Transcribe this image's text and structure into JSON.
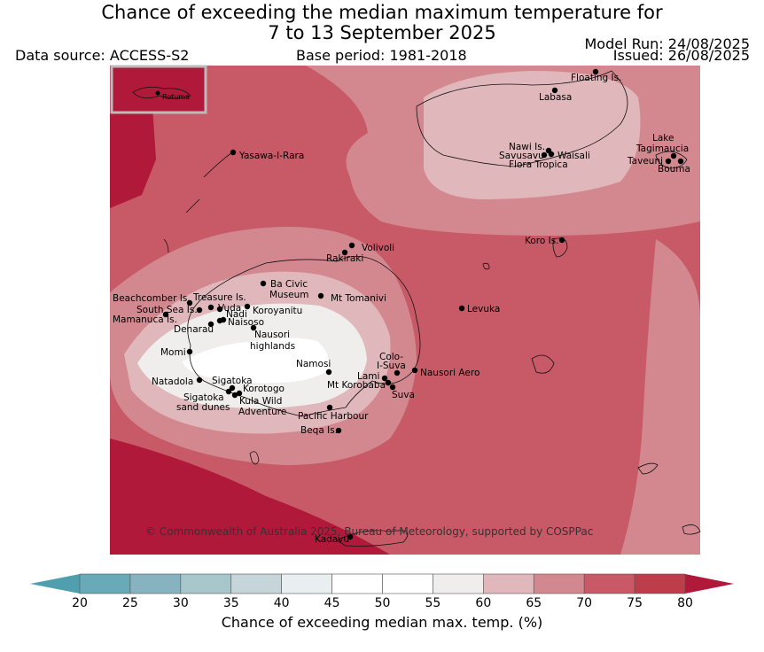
{
  "title_line1": "Chance of exceeding the median maximum temperature for",
  "title_line2": "7 to 13 September 2025",
  "data_source": "Data source: ACCESS-S2",
  "base_period": "Base period: 1981-2018",
  "model_run": "Model Run: 24/08/2025",
  "issued": "Issued: 26/08/2025",
  "copyright": "© Commonwealth of Australia 2025, Bureau of Meteorology, supported by COSPPac",
  "inset_label": "Rotuma",
  "colorbar": {
    "label": "Chance of exceeding median max. temp. (%)",
    "ticks": [
      "20",
      "25",
      "30",
      "35",
      "40",
      "45",
      "50",
      "55",
      "60",
      "65",
      "70",
      "75",
      "80"
    ],
    "colors": [
      "#69aab8",
      "#87b2bf",
      "#a6c6cc",
      "#c6d5da",
      "#e9eff1",
      "#ffffff",
      "#ffffff",
      "#efeeed",
      "#e0b7bb",
      "#d3888f",
      "#c75a66",
      "#bc3e4b"
    ],
    "under_color": "#4f9fae",
    "over_color": "#b0193a"
  },
  "places": [
    {
      "name": "Floating Is."
    },
    {
      "name": "Labasa"
    },
    {
      "name": "Yasawa-I-Rara"
    },
    {
      "name": "Nawi Is."
    },
    {
      "name": "Savusavu"
    },
    {
      "name": "Waisali"
    },
    {
      "name": "Flora Tropica"
    },
    {
      "name": "Lake"
    },
    {
      "name": "Tagimaucia"
    },
    {
      "name": "Taveuni"
    },
    {
      "name": "Bouma"
    },
    {
      "name": "Koro Is."
    },
    {
      "name": "Volivoli"
    },
    {
      "name": "Rakiraki"
    },
    {
      "name": "Ba Civic"
    },
    {
      "name": "Museum"
    },
    {
      "name": "Mt Tomanivi"
    },
    {
      "name": "Beachcomber Is."
    },
    {
      "name": "Treasure Is."
    },
    {
      "name": "South Sea Is."
    },
    {
      "name": "Vuda"
    },
    {
      "name": "Nadi"
    },
    {
      "name": "Koroyanitu"
    },
    {
      "name": "Mamanuca Is."
    },
    {
      "name": "Naisoso"
    },
    {
      "name": "Denarau"
    },
    {
      "name": "Nausori"
    },
    {
      "name": "highlands"
    },
    {
      "name": "Levuka"
    },
    {
      "name": "Momi"
    },
    {
      "name": "Namosi"
    },
    {
      "name": "Colo-"
    },
    {
      "name": "I-Suva"
    },
    {
      "name": "Natadola"
    },
    {
      "name": "Sigatoka"
    },
    {
      "name": "Lami"
    },
    {
      "name": "Nausori Aero"
    },
    {
      "name": "Mt Korobaba"
    },
    {
      "name": "Korotogo"
    },
    {
      "name": "Suva"
    },
    {
      "name": "Sigatoka"
    },
    {
      "name": "sand dunes"
    },
    {
      "name": "Kula Wild"
    },
    {
      "name": "Adventure"
    },
    {
      "name": "Pacific Harbour"
    },
    {
      "name": "Beqa Is."
    },
    {
      "name": "Kadavu"
    }
  ]
}
